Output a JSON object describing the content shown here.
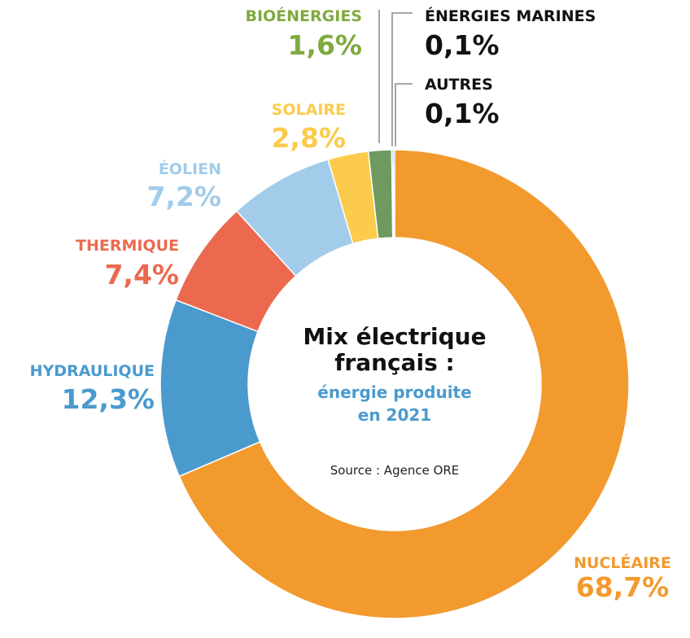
{
  "chart_data": {
    "type": "pie",
    "variant": "donut",
    "title_lines": [
      "Mix électrique",
      "français :"
    ],
    "subtitle_lines": [
      "énergie produite",
      "en 2021"
    ],
    "source": "Source : Agence ORE",
    "slices": [
      {
        "name": "NUCLÉAIRE",
        "value": 68.7,
        "value_label": "68,7%",
        "color": "#F29A2E"
      },
      {
        "name": "HYDRAULIQUE",
        "value": 12.3,
        "value_label": "12,3%",
        "color": "#4A9ACD"
      },
      {
        "name": "THERMIQUE",
        "value": 7.4,
        "value_label": "7,4%",
        "color": "#EB6A4F"
      },
      {
        "name": "ÉOLIEN",
        "value": 7.2,
        "value_label": "7,2%",
        "color": "#A2CCEA"
      },
      {
        "name": "SOLAIRE",
        "value": 2.8,
        "value_label": "2,8%",
        "color": "#FCCB4B"
      },
      {
        "name": "BIOÉNERGIES",
        "value": 1.6,
        "value_label": "1,6%",
        "color": "#6E9A5F"
      },
      {
        "name": "ÉNERGIES MARINES",
        "value": 0.1,
        "value_label": "0,1%",
        "color": "#2F6F8F"
      },
      {
        "name": "AUTRES",
        "value": 0.1,
        "value_label": "0,1%",
        "color": "#1E5060"
      }
    ],
    "label_colors": {
      "NUCLÉAIRE": "#F29A2E",
      "HYDRAULIQUE": "#4A9ACD",
      "THERMIQUE": "#EB6A4F",
      "ÉOLIEN": "#A2CCEA",
      "SOLAIRE": "#FCCB4B",
      "BIOÉNERGIES": "#7FAA3F",
      "ÉNERGIES MARINES": "#111111",
      "AUTRES": "#111111"
    },
    "subtitle_color": "#4A9ACD"
  }
}
